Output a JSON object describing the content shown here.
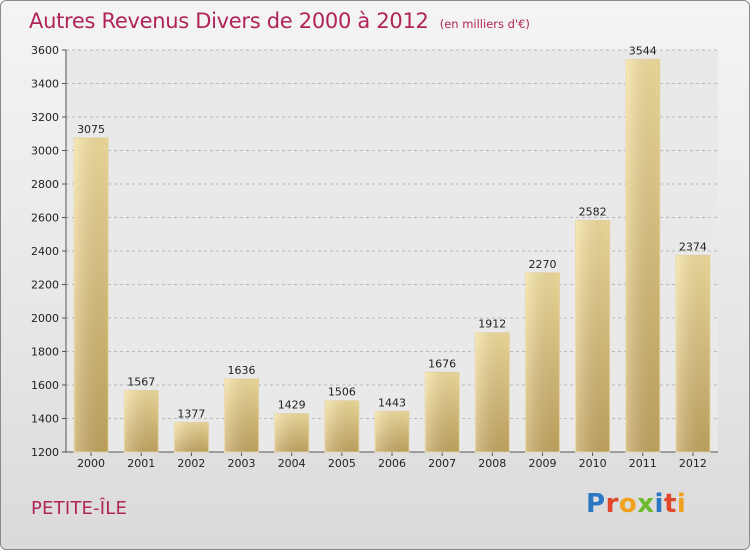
{
  "header": {
    "title": "Autres Revenus Divers de 2000 à 2012",
    "subtitle": "(en milliers d'€)"
  },
  "footer": {
    "place": "PETITE-ÎLE",
    "logo": "Proxiti"
  },
  "colors": {
    "accent": "#b0245a",
    "bar_light": "#f5df9a",
    "bar_dark": "#c9aa62"
  },
  "chart_data": {
    "type": "bar",
    "categories": [
      "2000",
      "2001",
      "2002",
      "2003",
      "2004",
      "2005",
      "2006",
      "2007",
      "2008",
      "2009",
      "2010",
      "2011",
      "2012"
    ],
    "values": [
      3075,
      1567,
      1377,
      1636,
      1429,
      1506,
      1443,
      1676,
      1912,
      2270,
      2582,
      3544,
      2374
    ],
    "ylim": [
      1200,
      3600
    ],
    "yticks": [
      1200,
      1400,
      1600,
      1800,
      2000,
      2200,
      2400,
      2600,
      2800,
      3000,
      3200,
      3400,
      3600
    ],
    "grid": "horizontal dashed",
    "data_labels": true
  }
}
